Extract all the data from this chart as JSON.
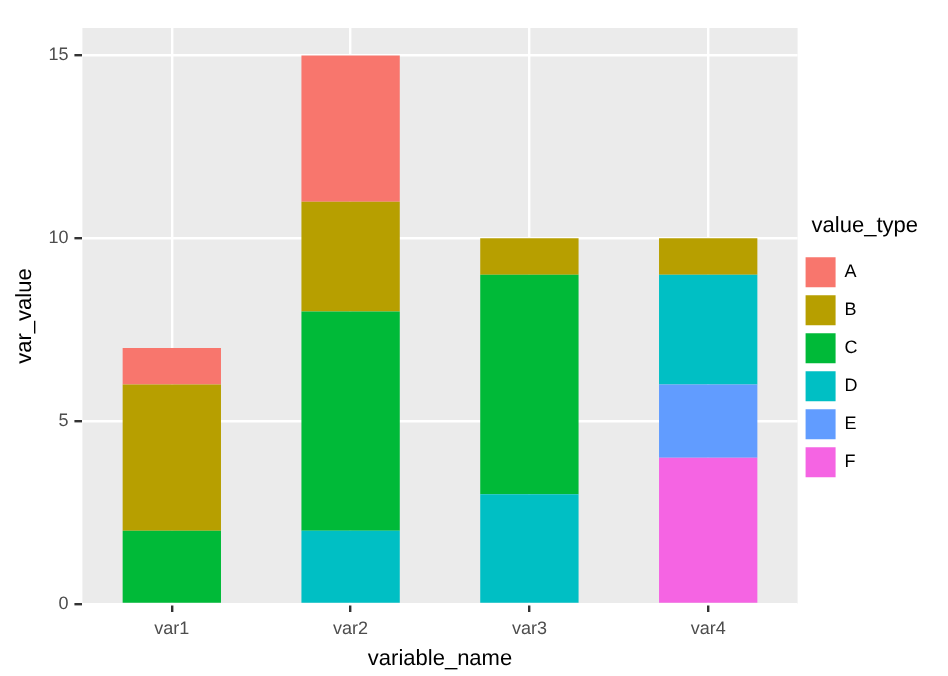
{
  "chart_data": {
    "type": "bar",
    "stacked": true,
    "xlabel": "variable_name",
    "ylabel": "var_value",
    "legend_title": "value_type",
    "legend": "right",
    "grid": true,
    "categories": [
      "var1",
      "var2",
      "var3",
      "var4"
    ],
    "ylim": [
      0,
      15.75
    ],
    "yticks": [
      0,
      5,
      10,
      15
    ],
    "series": [
      {
        "name": "F",
        "color": "#f564e3",
        "values": [
          null,
          null,
          null,
          4
        ]
      },
      {
        "name": "E",
        "color": "#619cff",
        "values": [
          null,
          null,
          null,
          2
        ]
      },
      {
        "name": "D",
        "color": "#00bfc4",
        "values": [
          null,
          2,
          3,
          3
        ]
      },
      {
        "name": "C",
        "color": "#00ba38",
        "values": [
          2,
          6,
          6,
          null
        ]
      },
      {
        "name": "B",
        "color": "#b79f00",
        "values": [
          4,
          3,
          1,
          1
        ]
      },
      {
        "name": "A",
        "color": "#f8766d",
        "values": [
          1,
          4,
          null,
          null
        ]
      }
    ]
  }
}
